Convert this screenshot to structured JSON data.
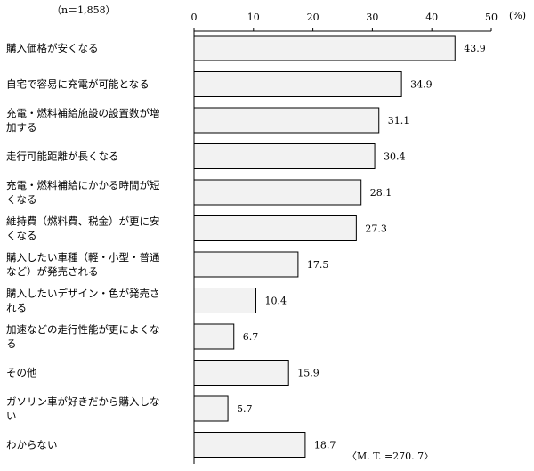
{
  "chart_data": {
    "type": "bar",
    "orientation": "horizontal",
    "sample_note": "（n＝1,858）",
    "unit": "(%)",
    "xlim": [
      0,
      50
    ],
    "xticks": [
      0,
      10,
      20,
      30,
      40,
      50
    ],
    "grid": false,
    "categories": [
      [
        "購入価格が安くなる"
      ],
      [
        "自宅で容易に充電が可能となる"
      ],
      [
        "充電・燃料補給施設の設置数が増",
        "加する"
      ],
      [
        "走行可能距離が長くなる"
      ],
      [
        "充電・燃料補給にかかる時間が短",
        "くなる"
      ],
      [
        "維持費（燃料費、税金）が更に安",
        "くなる"
      ],
      [
        "購入したい車種（軽・小型・普通",
        "など）が発売される"
      ],
      [
        "購入したいデザイン・色が発売さ",
        "れる"
      ],
      [
        "加速などの走行性能が更によくな",
        "る"
      ],
      [
        "その他"
      ],
      [
        "ガソリン車が好きだから購入しな",
        "い"
      ],
      [
        "わからない"
      ]
    ],
    "values": [
      43.9,
      34.9,
      31.1,
      30.4,
      28.1,
      27.3,
      17.5,
      10.4,
      6.7,
      15.9,
      5.7,
      18.7
    ],
    "value_labels": [
      "43.9",
      "34.9",
      "31.1",
      "30.4",
      "28.1",
      "27.3",
      "17.5",
      "10.4",
      "6.7",
      "15.9",
      "5.7",
      "18.7"
    ],
    "total_note": "〈M. T. =270. 7〉",
    "colors": {
      "bar_fill": "#f2f2f2",
      "bar_stroke": "#000000"
    }
  }
}
